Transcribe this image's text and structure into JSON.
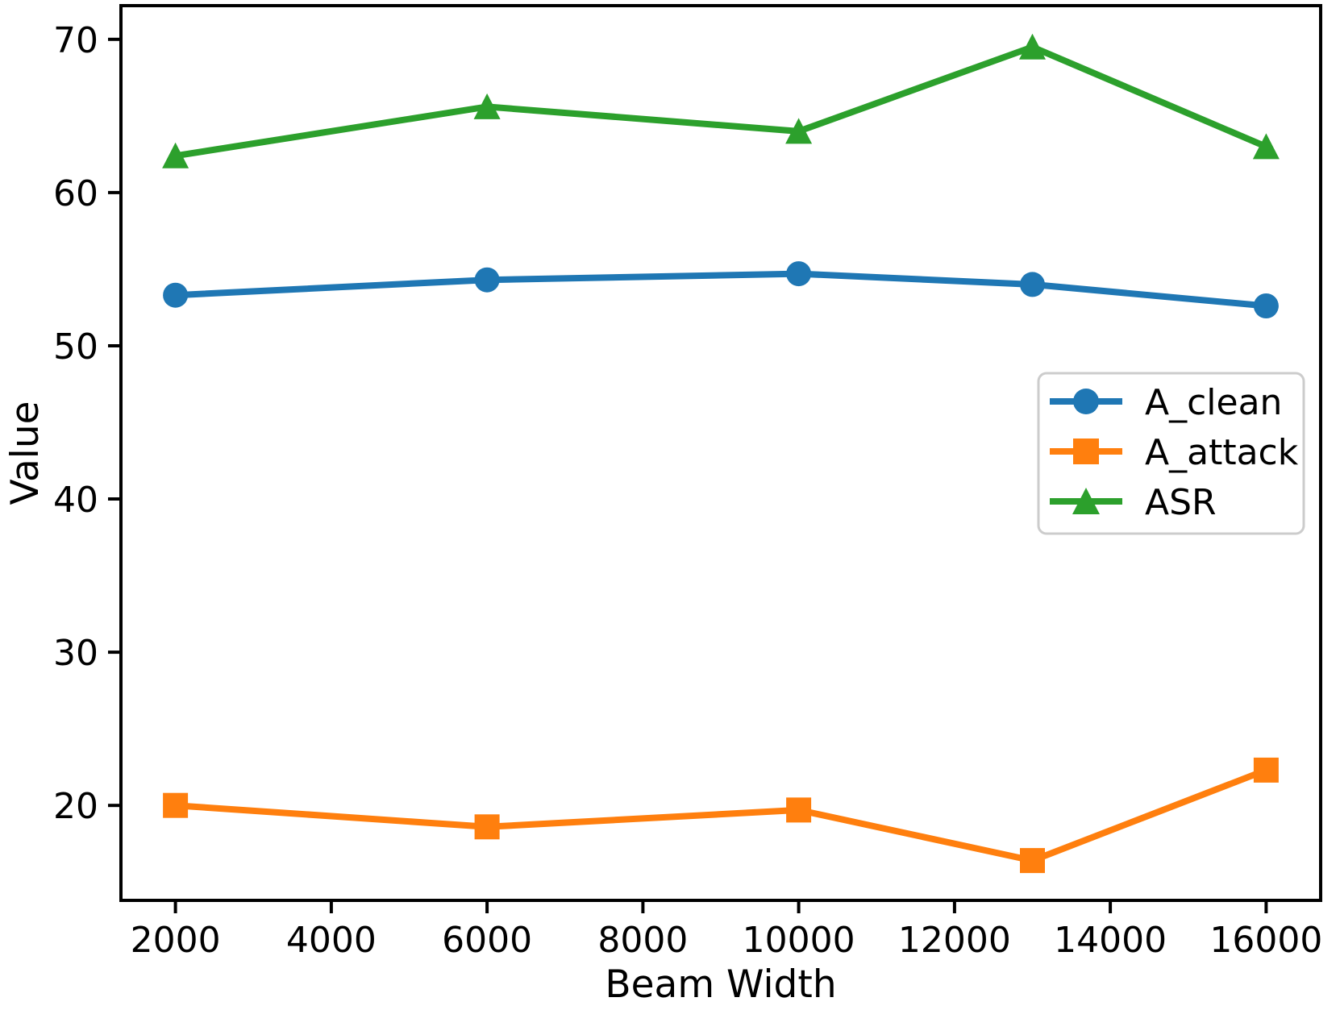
{
  "chart_data": {
    "type": "line",
    "title": "",
    "xlabel": "Beam Width",
    "ylabel": "Value",
    "x": [
      2000,
      6000,
      10000,
      13000,
      16000
    ],
    "series": [
      {
        "name": "A_clean",
        "color": "#1f77b4",
        "marker": "circle",
        "values": [
          53.3,
          54.3,
          54.7,
          54.0,
          52.6
        ]
      },
      {
        "name": "A_attack",
        "color": "#ff7f0e",
        "marker": "square",
        "values": [
          20.0,
          18.6,
          19.7,
          16.4,
          22.3
        ]
      },
      {
        "name": "ASR",
        "color": "#2ca02c",
        "marker": "triangle",
        "values": [
          62.4,
          65.6,
          64.0,
          69.5,
          63.0
        ]
      }
    ],
    "xticks": [
      2000,
      4000,
      6000,
      8000,
      10000,
      12000,
      14000,
      16000
    ],
    "yticks": [
      20,
      30,
      40,
      50,
      60,
      70
    ],
    "xlim": [
      1300,
      16700
    ],
    "ylim": [
      13.8,
      72.2
    ],
    "grid": false,
    "legend_position": "center-right",
    "legend": [
      "A_clean",
      "A_attack",
      "ASR"
    ],
    "axis_color": "#000000",
    "background_color": "#ffffff",
    "legend_border_color": "#cccccc"
  }
}
